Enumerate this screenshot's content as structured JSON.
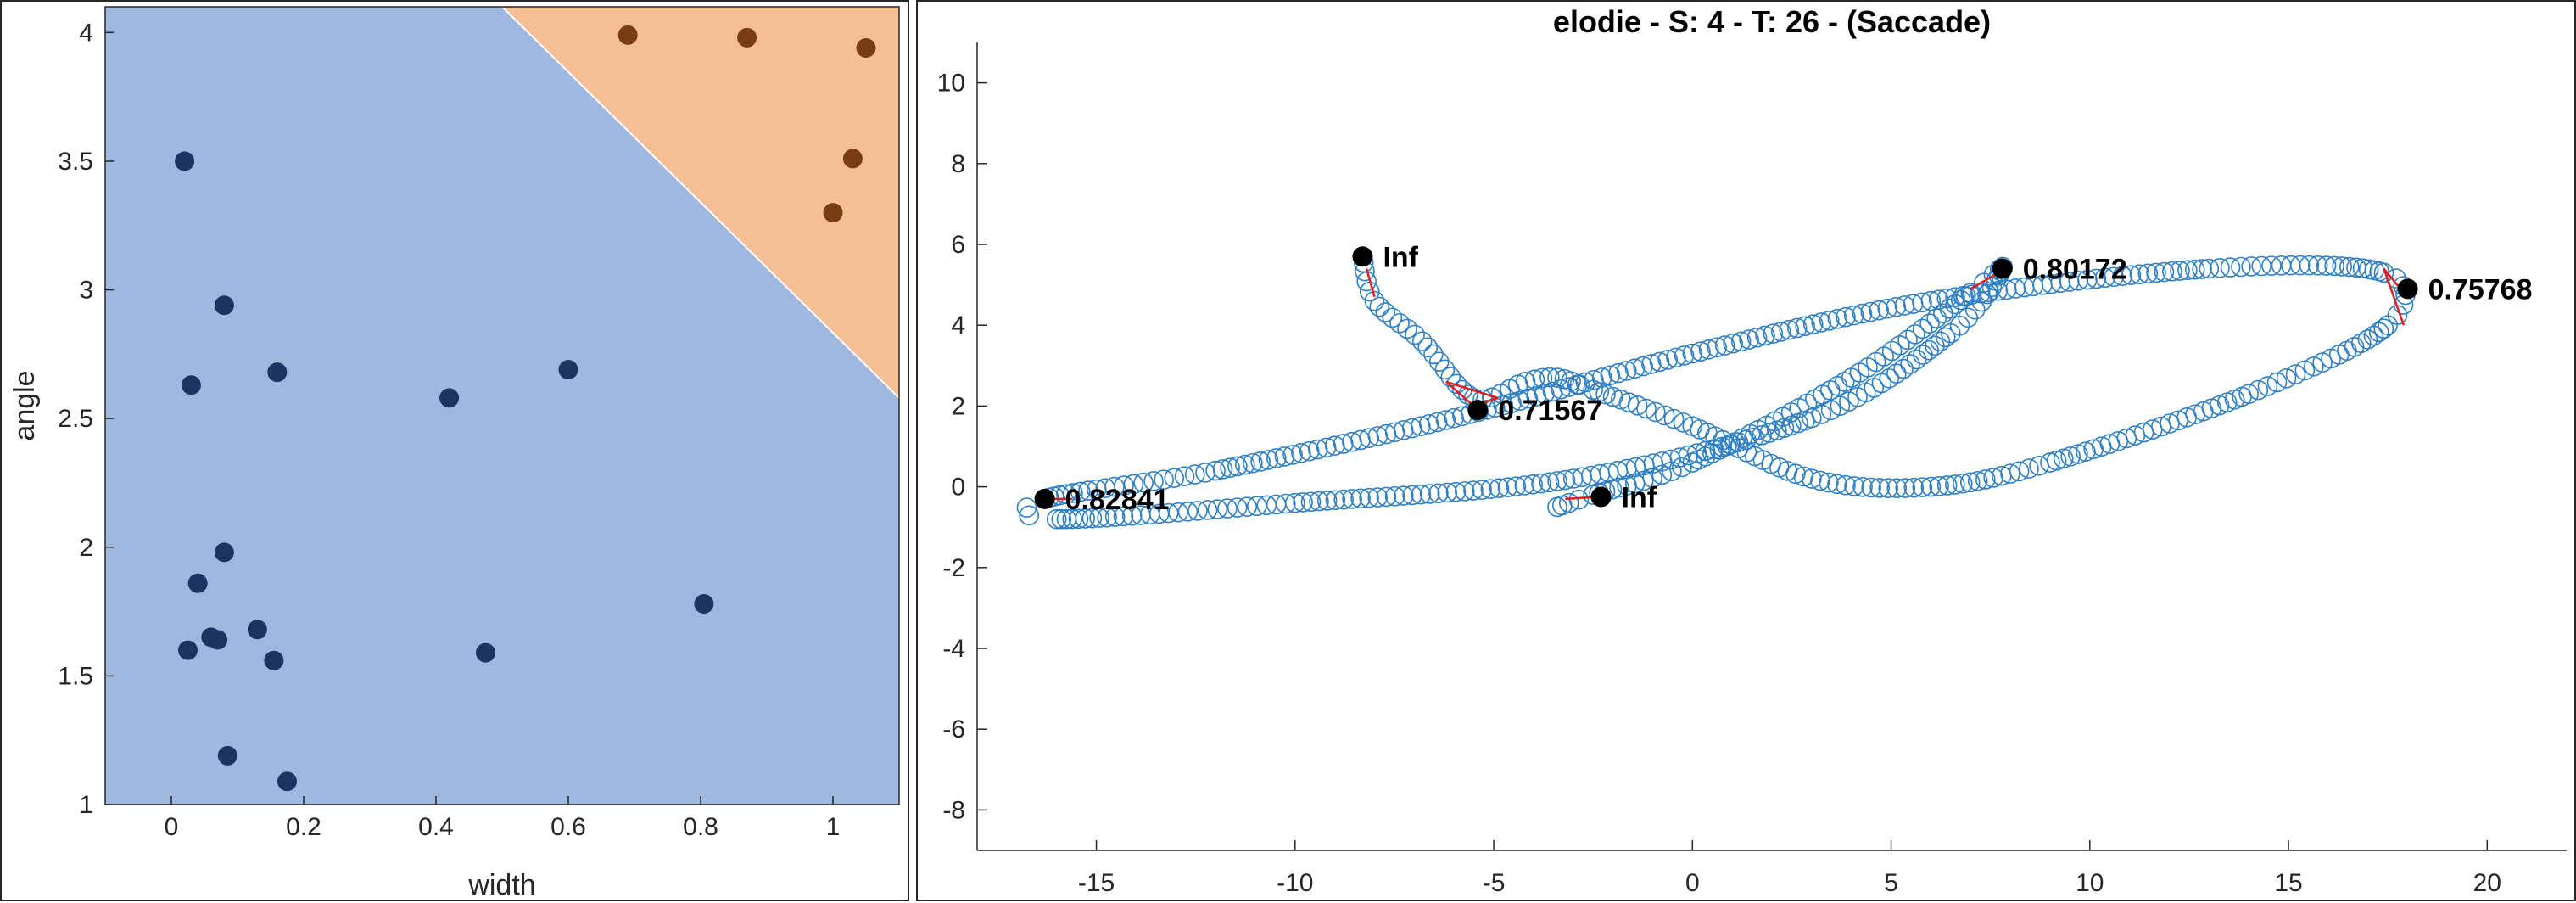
{
  "chart_data": [
    {
      "type": "scatter",
      "title": "",
      "xlabel": "width",
      "ylabel": "angle",
      "xlim": [
        -0.1,
        1.1
      ],
      "ylim": [
        1,
        4.1
      ],
      "xticks": [
        0,
        0.2,
        0.4,
        0.6,
        0.8,
        1
      ],
      "xtick_labels": [
        "0",
        "0.2",
        "0.4",
        "0.6",
        "0.8",
        "1"
      ],
      "yticks": [
        1,
        1.5,
        2,
        2.5,
        3,
        3.5,
        4
      ],
      "ytick_labels": [
        "1",
        "1.5",
        "2",
        "2.5",
        "3",
        "3.5",
        "4"
      ],
      "regions": [
        {
          "class": 1,
          "color": "#a0b8e0"
        },
        {
          "class": 2,
          "color": "#f5bf96",
          "boundary": [
            [
              0.5,
              4.1
            ],
            [
              1.1,
              2.58
            ]
          ]
        }
      ],
      "series": [
        {
          "class": 1,
          "color": "#1c3462",
          "points": [
            [
              0.02,
              3.5
            ],
            [
              0.08,
              2.94
            ],
            [
              0.03,
              2.63
            ],
            [
              0.16,
              2.68
            ],
            [
              0.42,
              2.58
            ],
            [
              0.6,
              2.69
            ],
            [
              0.08,
              1.98
            ],
            [
              0.04,
              1.86
            ],
            [
              0.13,
              1.68
            ],
            [
              0.06,
              1.65
            ],
            [
              0.07,
              1.64
            ],
            [
              0.025,
              1.6
            ],
            [
              0.155,
              1.56
            ],
            [
              0.475,
              1.59
            ],
            [
              0.805,
              1.78
            ],
            [
              0.085,
              1.19
            ],
            [
              0.175,
              1.09
            ]
          ]
        },
        {
          "class": 2,
          "color": "#7a3d12",
          "points": [
            [
              0.69,
              3.99
            ],
            [
              0.87,
              3.98
            ],
            [
              1.05,
              3.94
            ],
            [
              1.03,
              3.51
            ],
            [
              1.0,
              3.3
            ]
          ]
        }
      ]
    },
    {
      "type": "line",
      "title": "elodie  -  S: 4  -  T: 26  -  (Saccade)",
      "xlabel": "",
      "ylabel": "",
      "xlim": [
        -18,
        22
      ],
      "ylim": [
        -9,
        11
      ],
      "xticks": [
        -15,
        -10,
        -5,
        0,
        5,
        10,
        15,
        20
      ],
      "xtick_labels": [
        "-15",
        "-10",
        "-5",
        "0",
        "5",
        "10",
        "15",
        "20"
      ],
      "yticks": [
        -8,
        -6,
        -4,
        -2,
        0,
        2,
        4,
        6,
        8,
        10
      ],
      "ytick_labels": [
        "-8",
        "-6",
        "-4",
        "-2",
        "0",
        "2",
        "4",
        "6",
        "8",
        "10"
      ],
      "trajectory_color": "#2e7fc4",
      "trajectory_control_points": [
        [
          -8.3,
          5.7
        ],
        [
          -8.0,
          4.6
        ],
        [
          -6.8,
          3.6
        ],
        [
          -5.5,
          2.2
        ],
        [
          -4.2,
          2.6
        ],
        [
          -3.4,
          2.7
        ],
        [
          -2.5,
          2.4
        ],
        [
          0,
          1.5
        ],
        [
          3,
          0.2
        ],
        [
          6,
          0
        ],
        [
          9,
          0.6
        ],
        [
          14,
          2.3
        ],
        [
          17.5,
          4.0
        ],
        [
          17.4,
          5.3
        ],
        [
          13,
          5.4
        ],
        [
          6,
          4.6
        ],
        [
          0,
          3.3
        ],
        [
          -6,
          1.7
        ],
        [
          -12,
          0.4
        ],
        [
          -16.3,
          -0.3
        ],
        [
          -16,
          -0.8
        ],
        [
          -10,
          -0.4
        ],
        [
          -3,
          0.2
        ],
        [
          3,
          1.7
        ],
        [
          6.5,
          3.8
        ],
        [
          7.8,
          5.4
        ],
        [
          7,
          4.8
        ],
        [
          4,
          2.7
        ],
        [
          0,
          0.6
        ],
        [
          -2.5,
          -0.2
        ],
        [
          -3.4,
          -0.5
        ]
      ],
      "markers": [
        {
          "x": -8.3,
          "y": 5.7,
          "label": "Inf"
        },
        {
          "x": 7.8,
          "y": 5.4,
          "label": "0.80172"
        },
        {
          "x": 18.0,
          "y": 4.9,
          "label": "0.75768"
        },
        {
          "x": -5.4,
          "y": 1.9,
          "label": "0.71567"
        },
        {
          "x": -16.3,
          "y": -0.3,
          "label": "0.82841"
        },
        {
          "x": -2.3,
          "y": -0.25,
          "label": "Inf"
        }
      ],
      "red_segments": [
        [
          [
            -8.2,
            5.4
          ],
          [
            -8.0,
            4.7
          ]
        ],
        [
          [
            -5.5,
            2.0
          ],
          [
            -6.2,
            2.6
          ]
        ],
        [
          [
            -6.2,
            2.6
          ],
          [
            -4.9,
            2.2
          ]
        ],
        [
          [
            -4.9,
            2.2
          ],
          [
            -5.5,
            2.0
          ]
        ],
        [
          [
            7.7,
            5.3
          ],
          [
            7.0,
            4.9
          ]
        ],
        [
          [
            17.9,
            4.8
          ],
          [
            17.4,
            5.4
          ]
        ],
        [
          [
            17.4,
            5.4
          ],
          [
            17.9,
            4.0
          ]
        ],
        [
          [
            -16.2,
            -0.3
          ],
          [
            -15.6,
            -0.3
          ]
        ],
        [
          [
            -2.4,
            -0.25
          ],
          [
            -3.2,
            -0.3
          ]
        ]
      ],
      "red_color": "#e02020"
    }
  ]
}
